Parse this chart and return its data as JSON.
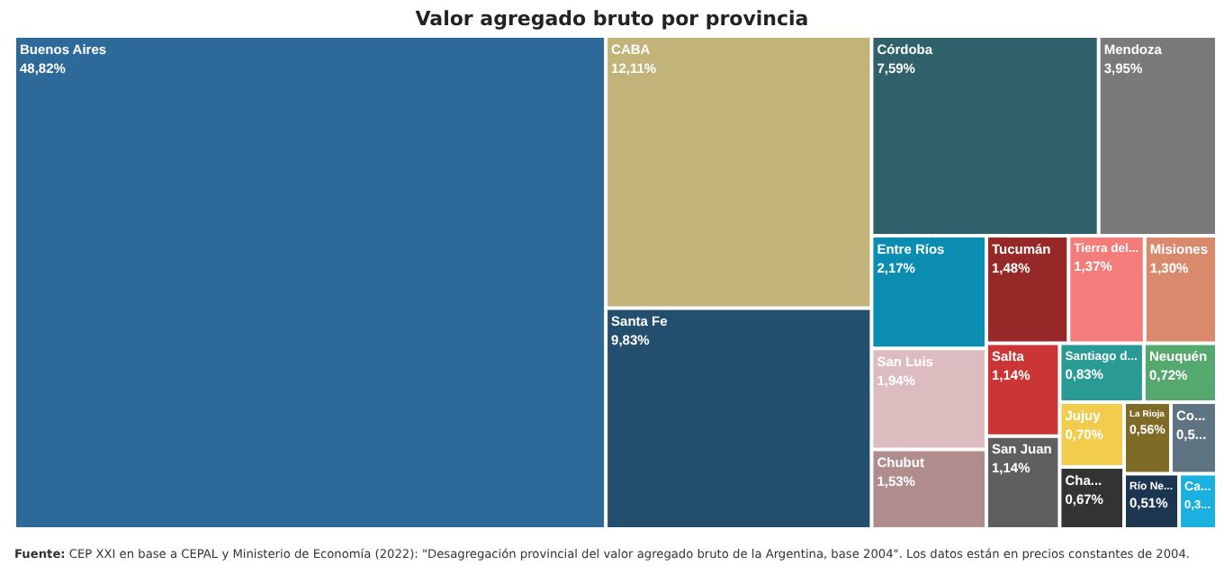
{
  "chart_data": {
    "type": "other",
    "title": "Valor agregado bruto por provincia",
    "categories": [
      "Buenos Aires",
      "CABA",
      "Santa Fe",
      "Córdoba",
      "Mendoza",
      "Entre Ríos",
      "San Luis",
      "Chubut",
      "Tucumán",
      "Tierra del...",
      "Misiones",
      "Salta",
      "San Juan",
      "Santiago d...",
      "Neuquén",
      "Jujuy",
      "Cha...",
      "La Rioja",
      "Co...",
      "Río Ne...",
      "Ca..."
    ],
    "values": [
      48.82,
      12.11,
      9.83,
      7.59,
      3.95,
      2.17,
      1.94,
      1.53,
      1.48,
      1.37,
      1.3,
      1.14,
      1.14,
      0.83,
      0.72,
      0.7,
      0.67,
      0.56,
      0.55,
      0.51,
      0.35
    ],
    "value_labels": [
      "48,82%",
      "12,11%",
      "9,83%",
      "7,59%",
      "3,95%",
      "2,17%",
      "1,94%",
      "1,53%",
      "1,48%",
      "1,37%",
      "1,30%",
      "1,14%",
      "1,14%",
      "0,83%",
      "0,72%",
      "0,70%",
      "0,67%",
      "0,56%",
      "0,5...",
      "0,51%",
      "0,3..."
    ],
    "colors": [
      "#2e6a99",
      "#c2b378",
      "#244e6e",
      "#30606a",
      "#7a7a7a",
      "#0a8db0",
      "#ddbcc0",
      "#b08c8c",
      "#962828",
      "#f47d7c",
      "#d9896c",
      "#cc3535",
      "#5f5f5f",
      "#2a9a94",
      "#55a86e",
      "#f2cc4c",
      "#333333",
      "#7e6b26",
      "#5e7482",
      "#1c3550",
      "#1ab0e0"
    ],
    "annotations": [
      "Fuente: CEP XXI en base a CEPAL y Ministerio de Economía (2022): \"Desagregación provincial del valor agregado bruto de la Argentina, base 2004\". Los datos están en precios constantes de 2004."
    ]
  }
}
